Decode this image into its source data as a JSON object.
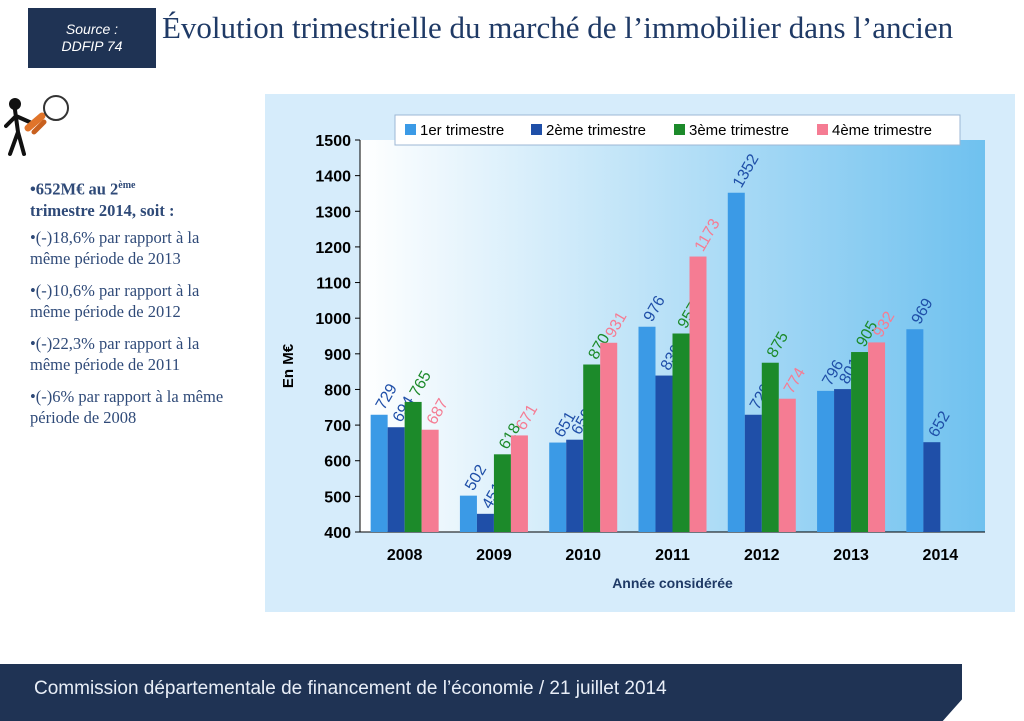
{
  "header": {
    "source_line1": "Source :",
    "source_line2": "DDFIP 74",
    "title": "Évolution trimestrielle du marché de l’immobilier dans l’ancien"
  },
  "sidebar": {
    "headline_pre": "•652M€ au 2",
    "headline_sup": "ème",
    "headline_post": "trimestre 2014, soit :",
    "points": [
      "•(-)18,6% par rapport à la même période de 2013",
      "•(-)10,6% par rapport à la même période de 2012",
      "•(-)22,3% par rapport à la même période de 2011",
      "•(-)6% par rapport à la même période de 2008"
    ]
  },
  "chart_data": {
    "type": "bar",
    "categories": [
      "2008",
      "2009",
      "2010",
      "2011",
      "2012",
      "2013",
      "2014"
    ],
    "series": [
      {
        "name": "1er trimestre",
        "color": "#3b9ae6",
        "values": [
          729,
          502,
          651,
          976,
          1352,
          796,
          969
        ]
      },
      {
        "name": "2ème trimestre",
        "color": "#1f4fa8",
        "values": [
          694,
          451,
          659,
          839,
          729,
          801,
          652
        ]
      },
      {
        "name": "3ème trimestre",
        "color": "#1c8a2a",
        "values": [
          765,
          618,
          870,
          957,
          875,
          905,
          null
        ]
      },
      {
        "name": "4ème trimestre",
        "color": "#f57c93",
        "values": [
          687,
          671,
          931,
          1173,
          774,
          932,
          null
        ]
      }
    ],
    "label_colors": [
      "#1f4fa8",
      "#1f4fa8",
      "#1c8a2a",
      "#f57c93"
    ],
    "ylim": [
      400,
      1500
    ],
    "yticks": [
      400,
      500,
      600,
      700,
      800,
      900,
      1000,
      1100,
      1200,
      1300,
      1400,
      1500
    ],
    "xlabel": "Année considérée",
    "ylabel": "En M€",
    "legend_position": "top"
  },
  "footer": {
    "text": "Commission départementale de financement de l’économie / 21 juillet 2014"
  }
}
